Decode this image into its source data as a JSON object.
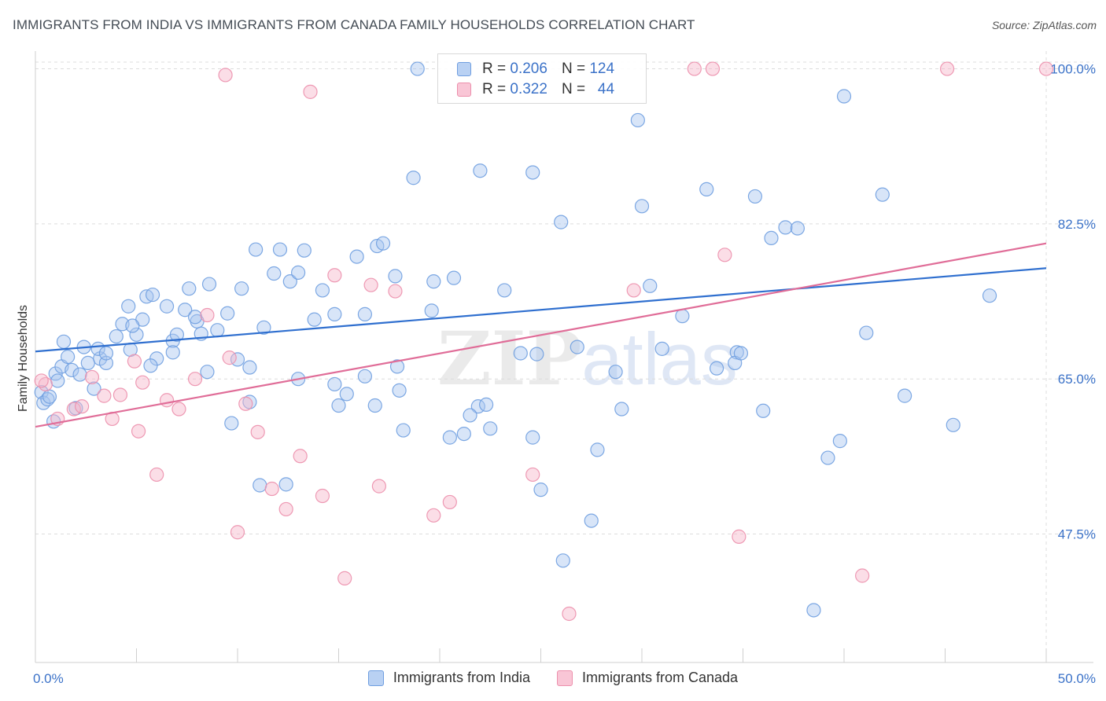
{
  "title": "IMMIGRANTS FROM INDIA VS IMMIGRANTS FROM CANADA FAMILY HOUSEHOLDS CORRELATION CHART",
  "source": "Source: ZipAtlas.com",
  "watermark": {
    "zip": "ZIP",
    "atlas": "atlas"
  },
  "legend": {
    "r_label": "R =",
    "n_label": "N =",
    "india": {
      "r": "0.206",
      "n": "124"
    },
    "canada": {
      "r": "0.322",
      "n": "44"
    }
  },
  "colors": {
    "india_fill": "#a9c6ef",
    "india_stroke": "#6f9ee0",
    "india_line": "#2f6fcf",
    "canada_fill": "#f6b5c9",
    "canada_stroke": "#ec8fac",
    "canada_line": "#e06d98",
    "axis_label": "#3b72c8"
  },
  "chart_data": {
    "type": "scatter",
    "ylabel": "Family Households",
    "xlim": [
      0,
      50
    ],
    "ylim": [
      33,
      102
    ],
    "x_tick_labels": [
      "0.0%",
      "50.0%"
    ],
    "y_ticks": [
      47.5,
      65.0,
      82.5,
      100.0
    ],
    "y_tick_labels": [
      "47.5%",
      "65.0%",
      "82.5%",
      "100.0%"
    ],
    "grid": true,
    "legend_position": "top-center",
    "series": [
      {
        "name": "Immigrants from India",
        "trend": {
          "x": [
            0,
            50
          ],
          "y": [
            68.1,
            77.5
          ]
        },
        "points": [
          [
            0.3,
            63.5
          ],
          [
            0.4,
            62.3
          ],
          [
            0.6,
            62.7
          ],
          [
            1.0,
            65.6
          ],
          [
            1.1,
            64.8
          ],
          [
            1.3,
            66.4
          ],
          [
            1.6,
            67.5
          ],
          [
            1.8,
            66.0
          ],
          [
            2.2,
            65.5
          ],
          [
            2.0,
            61.7
          ],
          [
            2.6,
            66.8
          ],
          [
            2.9,
            63.9
          ],
          [
            3.2,
            67.3
          ],
          [
            3.5,
            66.8
          ],
          [
            3.1,
            68.4
          ],
          [
            4.0,
            69.8
          ],
          [
            4.3,
            71.2
          ],
          [
            4.6,
            73.2
          ],
          [
            4.7,
            68.3
          ],
          [
            5.0,
            70.0
          ],
          [
            5.3,
            71.7
          ],
          [
            5.5,
            74.3
          ],
          [
            5.8,
            74.5
          ],
          [
            6.0,
            67.3
          ],
          [
            6.5,
            73.2
          ],
          [
            6.8,
            69.3
          ],
          [
            7.0,
            70.0
          ],
          [
            7.4,
            72.8
          ],
          [
            7.6,
            75.2
          ],
          [
            8.0,
            71.5
          ],
          [
            8.2,
            70.1
          ],
          [
            8.5,
            65.8
          ],
          [
            8.6,
            75.7
          ],
          [
            9.0,
            70.5
          ],
          [
            9.5,
            72.4
          ],
          [
            10.0,
            67.2
          ],
          [
            10.2,
            75.2
          ],
          [
            10.6,
            66.3
          ],
          [
            10.9,
            79.6
          ],
          [
            11.3,
            70.8
          ],
          [
            11.8,
            76.9
          ],
          [
            12.1,
            79.6
          ],
          [
            12.6,
            76.0
          ],
          [
            13.0,
            77.0
          ],
          [
            13.3,
            79.5
          ],
          [
            13.8,
            71.7
          ],
          [
            14.2,
            75.0
          ],
          [
            14.8,
            64.4
          ],
          [
            15.0,
            62.0
          ],
          [
            15.4,
            63.3
          ],
          [
            15.9,
            78.8
          ],
          [
            16.3,
            72.3
          ],
          [
            16.9,
            80.0
          ],
          [
            17.2,
            80.3
          ],
          [
            17.8,
            76.6
          ],
          [
            18.2,
            59.2
          ],
          [
            18.7,
            87.7
          ],
          [
            19.7,
            76.0
          ],
          [
            20.5,
            58.4
          ],
          [
            20.7,
            76.4
          ],
          [
            21.2,
            58.8
          ],
          [
            21.9,
            61.9
          ],
          [
            22.0,
            88.5
          ],
          [
            22.5,
            59.4
          ],
          [
            23.2,
            75.0
          ],
          [
            24.0,
            67.9
          ],
          [
            24.6,
            58.4
          ],
          [
            24.6,
            88.3
          ],
          [
            24.8,
            67.8
          ],
          [
            26.0,
            82.7
          ],
          [
            26.8,
            68.6
          ],
          [
            27.5,
            49.0
          ],
          [
            28.7,
            65.8
          ],
          [
            29.8,
            94.2
          ],
          [
            30.0,
            84.5
          ],
          [
            30.4,
            75.5
          ],
          [
            31.0,
            68.4
          ],
          [
            32.0,
            72.1
          ],
          [
            33.2,
            86.4
          ],
          [
            34.7,
            68.0
          ],
          [
            34.6,
            66.8
          ],
          [
            34.9,
            67.9
          ],
          [
            35.6,
            85.6
          ],
          [
            36.4,
            80.9
          ],
          [
            37.1,
            82.1
          ],
          [
            37.7,
            82.0
          ],
          [
            38.5,
            38.9
          ],
          [
            39.8,
            58.0
          ],
          [
            40.0,
            96.9
          ],
          [
            41.9,
            85.8
          ],
          [
            18.9,
            100.0
          ],
          [
            11.1,
            53.0
          ],
          [
            12.4,
            53.1
          ],
          [
            16.3,
            65.3
          ],
          [
            17.9,
            66.4
          ],
          [
            19.6,
            72.7
          ],
          [
            22.3,
            62.1
          ],
          [
            13.0,
            65.0
          ],
          [
            26.1,
            44.5
          ],
          [
            9.7,
            60.0
          ],
          [
            7.9,
            72.0
          ],
          [
            6.8,
            68.0
          ],
          [
            5.7,
            66.5
          ],
          [
            3.5,
            67.9
          ],
          [
            2.4,
            68.6
          ],
          [
            1.4,
            69.2
          ],
          [
            0.9,
            60.2
          ],
          [
            0.7,
            63.0
          ],
          [
            4.8,
            71.0
          ],
          [
            10.6,
            62.4
          ],
          [
            14.8,
            72.3
          ],
          [
            16.8,
            62.0
          ],
          [
            18.0,
            63.7
          ],
          [
            21.5,
            60.9
          ],
          [
            25.0,
            52.5
          ],
          [
            27.8,
            57.0
          ],
          [
            29.0,
            61.6
          ],
          [
            33.7,
            66.2
          ],
          [
            36.0,
            61.4
          ],
          [
            39.2,
            56.1
          ],
          [
            41.1,
            70.2
          ],
          [
            43.0,
            63.1
          ],
          [
            45.4,
            59.8
          ],
          [
            47.2,
            74.4
          ]
        ]
      },
      {
        "name": "Immigrants from Canada",
        "trend": {
          "x": [
            0,
            50
          ],
          "y": [
            59.6,
            80.3
          ]
        },
        "points": [
          [
            0.5,
            64.4
          ],
          [
            1.1,
            60.5
          ],
          [
            1.9,
            61.6
          ],
          [
            2.3,
            61.9
          ],
          [
            2.8,
            65.2
          ],
          [
            3.4,
            63.1
          ],
          [
            3.8,
            60.5
          ],
          [
            4.2,
            63.2
          ],
          [
            4.9,
            67.0
          ],
          [
            5.1,
            59.1
          ],
          [
            5.3,
            64.6
          ],
          [
            6.0,
            54.2
          ],
          [
            6.5,
            62.6
          ],
          [
            7.1,
            61.6
          ],
          [
            7.9,
            65.0
          ],
          [
            8.5,
            72.2
          ],
          [
            9.6,
            67.4
          ],
          [
            10.0,
            47.7
          ],
          [
            10.4,
            62.2
          ],
          [
            11.0,
            59.0
          ],
          [
            11.7,
            52.6
          ],
          [
            12.4,
            50.3
          ],
          [
            13.1,
            56.3
          ],
          [
            13.6,
            97.4
          ],
          [
            14.2,
            51.8
          ],
          [
            14.8,
            76.7
          ],
          [
            15.3,
            42.5
          ],
          [
            16.6,
            75.6
          ],
          [
            17.0,
            52.9
          ],
          [
            17.8,
            74.9
          ],
          [
            19.7,
            49.6
          ],
          [
            20.5,
            51.1
          ],
          [
            24.6,
            54.2
          ],
          [
            26.4,
            38.5
          ],
          [
            29.6,
            75.0
          ],
          [
            32.6,
            100.0
          ],
          [
            33.5,
            100.0
          ],
          [
            34.1,
            79.0
          ],
          [
            34.8,
            47.2
          ],
          [
            40.9,
            42.8
          ],
          [
            45.1,
            100.0
          ],
          [
            50.0,
            100.0
          ],
          [
            9.4,
            99.3
          ],
          [
            0.3,
            64.8
          ]
        ]
      }
    ]
  }
}
